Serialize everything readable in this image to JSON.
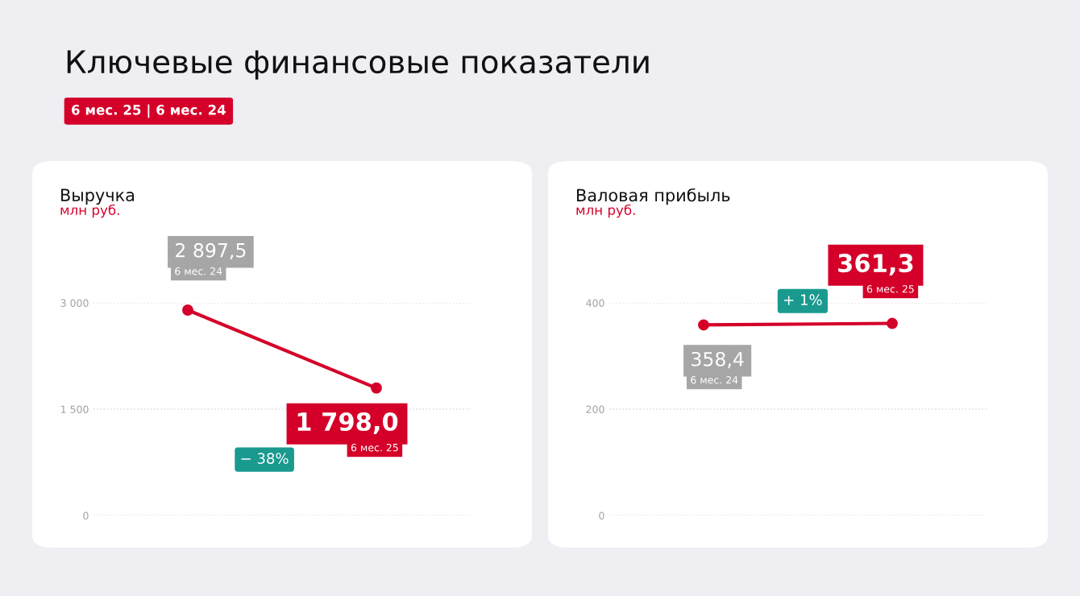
{
  "chart_data": [
    {
      "type": "line",
      "title": "Выручка",
      "subtitle": "млн руб.",
      "categories": [
        null,
        null
      ],
      "series": [
        {
          "color": "#d40029",
          "values": [
            2897.5,
            1798.0
          ],
          "value_labels": [
            "2 897,5",
            "1 798,0"
          ]
        }
      ],
      "ylim": [
        0,
        3000
      ],
      "yticks": [
        0,
        {
          "value": 1500,
          "label": "1 500"
        },
        {
          "value": 3000,
          "label": "3 000"
        }
      ],
      "grid": "y",
      "marker": "circle",
      "line_style": "solid",
      "tick_labels": "y",
      "annotations": [
        "Ключевые финансовые показатели",
        "6 мес. 25 | 6 мес. 24",
        "6 мес. 24",
        "6 мес. 25",
        "− 38%"
      ]
    },
    {
      "type": "line",
      "title": "Валовая прибыль",
      "subtitle": "млн руб.",
      "categories": [
        null,
        null
      ],
      "series": [
        {
          "color": "#d40029",
          "values": [
            358.4,
            361.3
          ],
          "value_labels": [
            "358,4",
            "361,3"
          ]
        }
      ],
      "ylim": [
        0,
        400
      ],
      "yticks": [
        0,
        200,
        400
      ],
      "grid": "y",
      "marker": "circle",
      "line_style": "solid",
      "tick_labels": "y",
      "annotations": [
        "6 мес. 24",
        "6 мес. 25",
        "+ 1%"
      ]
    }
  ]
}
